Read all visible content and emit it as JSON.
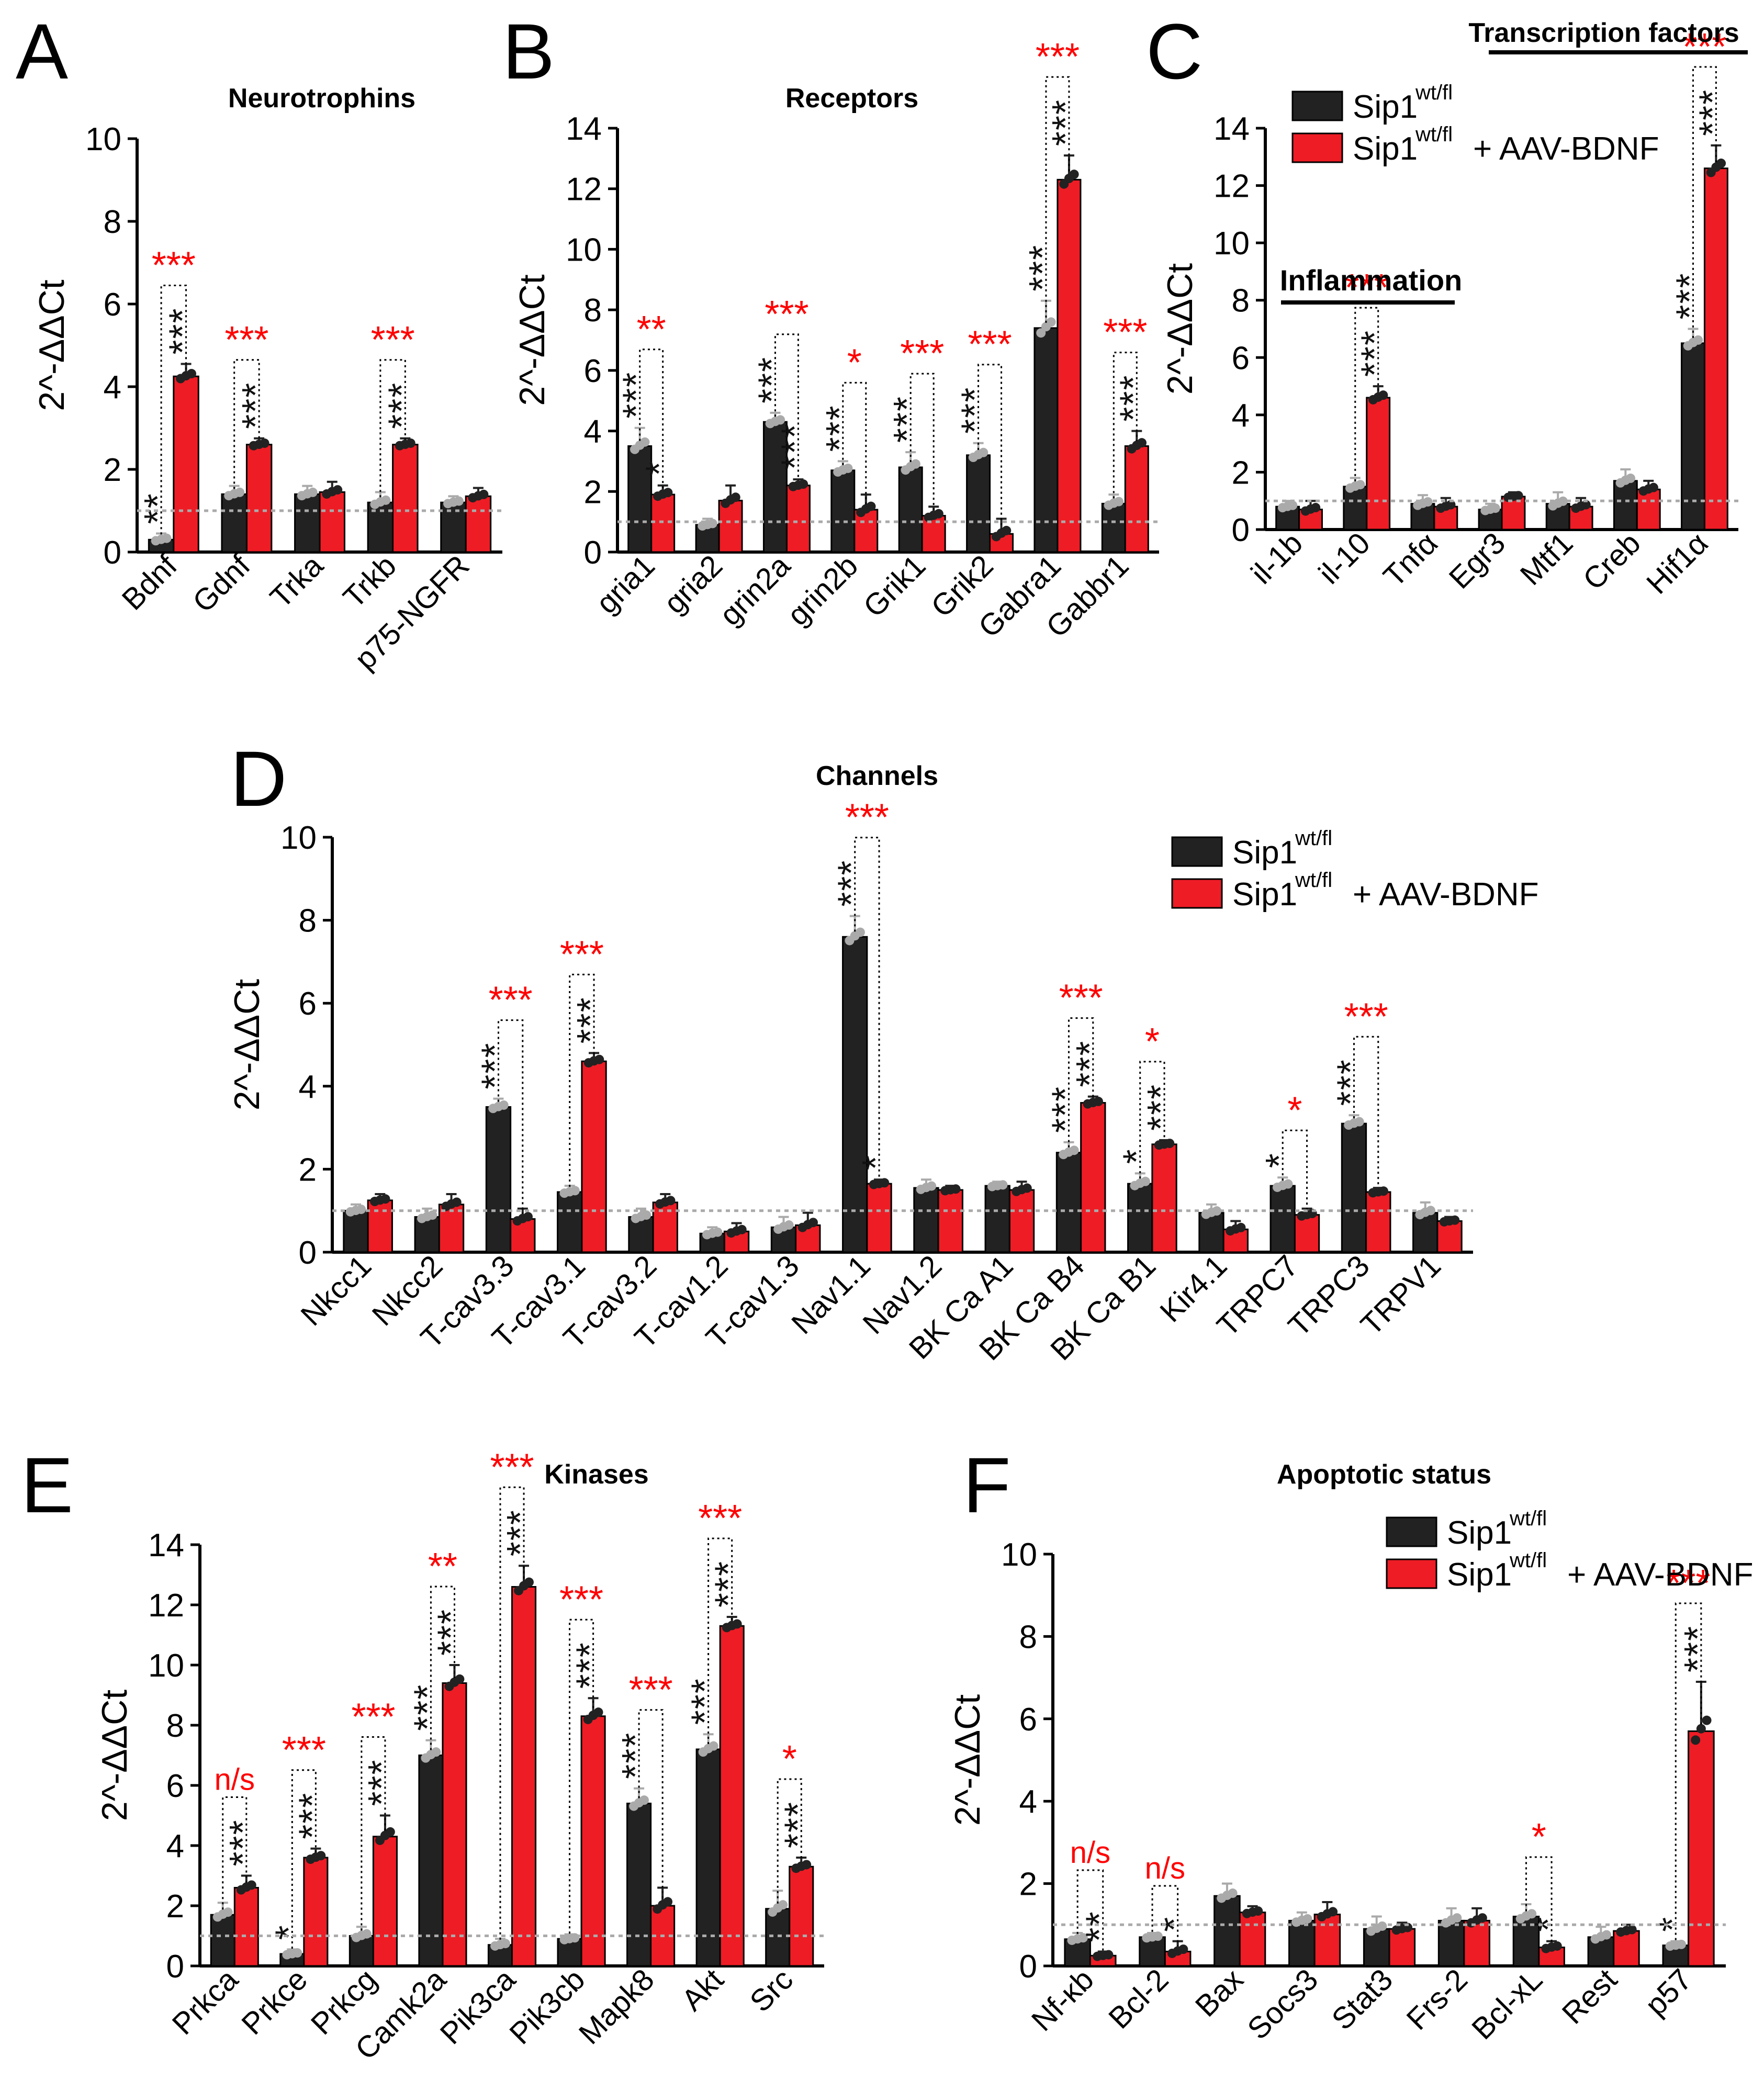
{
  "figure": {
    "legend": {
      "control_label": "Sip1",
      "control_sup": "wt/fl",
      "treated_label": "Sip1",
      "treated_sup": "wt/fl",
      "treated_suffix": "+ AAV-BDNF"
    }
  },
  "colors": {
    "control": "#222222",
    "treated": "#ee1c25",
    "sig_red": "#ff0000",
    "sig_black": "#111111",
    "ref_line": "#aaaaaa",
    "dot_control": "#aaaaaa",
    "dot_treated": "#222222"
  },
  "chart_data": [
    {
      "panel_letter": "A",
      "type": "bar",
      "title": "Neurotrophins",
      "ylabel": "2^-ΔΔCt",
      "ylim": [
        0,
        10
      ],
      "yticks": [
        0,
        2,
        4,
        6,
        8,
        10
      ],
      "reference_line": 1,
      "categories": [
        "Bdnf",
        "Gdnf",
        "Trka",
        "Trkb",
        "p75-NGFR"
      ],
      "series": [
        {
          "name": "Sip1 wt/fl",
          "values": [
            0.3,
            1.4,
            1.4,
            1.2,
            1.2
          ],
          "errors": [
            0.15,
            0.2,
            0.2,
            0.25,
            0.15
          ]
        },
        {
          "name": "Sip1 wt/fl + AAV-BDNF",
          "values": [
            4.25,
            2.6,
            1.45,
            2.6,
            1.35
          ],
          "errors": [
            0.3,
            0.15,
            0.25,
            0.15,
            0.2
          ]
        }
      ],
      "marks_control": [
        "**",
        "",
        "",
        "",
        ""
      ],
      "marks_treated": [
        "***",
        "***",
        "",
        "***",
        ""
      ],
      "comparisons": [
        "***",
        "***",
        "",
        "***",
        ""
      ],
      "comparison_colors": [
        "red",
        "red",
        "",
        "red",
        ""
      ]
    },
    {
      "panel_letter": "B",
      "type": "bar",
      "title": "Receptors",
      "ylabel": "2^-ΔΔCt",
      "ylim": [
        0,
        14
      ],
      "yticks": [
        0,
        2,
        4,
        6,
        8,
        10,
        12,
        14
      ],
      "reference_line": 1,
      "categories": [
        "gria1",
        "gria2",
        "grin2a",
        "grin2b",
        "Grik1",
        "Grik2",
        "Gabra1",
        "Gabbr1"
      ],
      "series": [
        {
          "name": "Sip1 wt/fl",
          "values": [
            3.5,
            0.9,
            4.3,
            2.7,
            2.8,
            3.2,
            7.4,
            1.6
          ],
          "errors": [
            0.6,
            0.2,
            0.3,
            0.3,
            0.5,
            0.4,
            0.9,
            0.3
          ]
        },
        {
          "name": "Sip1 wt/fl + AAV-BDNF",
          "values": [
            1.9,
            1.7,
            2.2,
            1.4,
            1.2,
            0.6,
            12.3,
            3.5
          ],
          "errors": [
            0.3,
            0.5,
            0.2,
            0.5,
            0.3,
            0.5,
            0.8,
            0.5
          ]
        }
      ],
      "marks_control": [
        "***",
        "",
        "***",
        "***",
        "***",
        "***",
        "***",
        ""
      ],
      "marks_treated": [
        "*",
        "",
        "***",
        "",
        "",
        "",
        "***",
        "***"
      ],
      "comparisons": [
        "**",
        "",
        "***",
        "*",
        "***",
        "***",
        "***",
        "***"
      ],
      "comparison_colors": [
        "red",
        "",
        "red",
        "red",
        "red",
        "red",
        "red",
        "red"
      ]
    },
    {
      "panel_letter": "C",
      "type": "bar",
      "title": "",
      "ylabel": "2^-ΔΔCt",
      "ylim": [
        0,
        14
      ],
      "yticks": [
        0,
        2,
        4,
        6,
        8,
        10,
        12,
        14
      ],
      "reference_line": 1,
      "annotations": [
        "Transcription factors",
        "Inflammation"
      ],
      "categories": [
        "il-1b",
        "il-10",
        "Tnfα",
        "Egr3",
        "Mtf1",
        "Creb",
        "Hif1α"
      ],
      "series": [
        {
          "name": "Sip1 wt/fl",
          "values": [
            0.8,
            1.5,
            0.9,
            0.7,
            0.9,
            1.7,
            6.5
          ],
          "errors": [
            0.2,
            0.3,
            0.3,
            0.2,
            0.4,
            0.4,
            0.5
          ]
        },
        {
          "name": "Sip1 wt/fl + AAV-BDNF",
          "values": [
            0.7,
            4.6,
            0.8,
            1.15,
            0.8,
            1.4,
            12.6
          ],
          "errors": [
            0.3,
            0.4,
            0.3,
            0.15,
            0.3,
            0.3,
            0.8
          ]
        }
      ],
      "marks_control": [
        "",
        "",
        "",
        "",
        "",
        "",
        "***"
      ],
      "marks_treated": [
        "",
        "***",
        "",
        "",
        "",
        "",
        "***"
      ],
      "comparisons": [
        "",
        "***",
        "",
        "",
        "",
        "",
        "***"
      ],
      "comparison_colors": [
        "",
        "red",
        "",
        "",
        "",
        "",
        "red"
      ]
    },
    {
      "panel_letter": "D",
      "type": "bar",
      "title": "Channels",
      "ylabel": "2^-ΔΔCt",
      "ylim": [
        0,
        10
      ],
      "yticks": [
        0,
        2,
        4,
        6,
        8,
        10
      ],
      "reference_line": 1,
      "categories": [
        "Nkcc1",
        "Nkcc2",
        "T-cav3.3",
        "T-cav3.1",
        "T-cav3.2",
        "T-cav1.2",
        "T-cav1.3",
        "Nav1.1",
        "Nav1.2",
        "BK Ca A1",
        "BK Ca B4",
        "BK Ca B1",
        "Kir4.1",
        "TRPC7",
        "TRPC3",
        "TRPV1"
      ],
      "series": [
        {
          "name": "Sip1 wt/fl",
          "values": [
            1.0,
            0.85,
            3.5,
            1.45,
            0.85,
            0.45,
            0.6,
            7.6,
            1.55,
            1.6,
            2.4,
            1.65,
            0.95,
            1.6,
            3.1,
            0.95
          ],
          "errors": [
            0.15,
            0.2,
            0.2,
            0.15,
            0.2,
            0.15,
            0.25,
            0.5,
            0.2,
            0.1,
            0.25,
            0.25,
            0.2,
            0.2,
            0.2,
            0.25
          ]
        },
        {
          "name": "Sip1 wt/fl + AAV-BDNF",
          "values": [
            1.25,
            1.15,
            0.8,
            4.6,
            1.2,
            0.5,
            0.65,
            1.65,
            1.5,
            1.5,
            3.6,
            2.6,
            0.55,
            0.9,
            1.45,
            0.75
          ],
          "errors": [
            0.15,
            0.25,
            0.25,
            0.2,
            0.2,
            0.2,
            0.3,
            0.1,
            0.1,
            0.2,
            0.15,
            0.1,
            0.2,
            0.15,
            0.1,
            0.1
          ]
        }
      ],
      "marks_control": [
        "",
        "",
        "***",
        "",
        "",
        "",
        "",
        "***",
        "",
        "",
        "***",
        "*",
        "",
        "*",
        "***",
        ""
      ],
      "marks_treated": [
        "",
        "",
        "",
        "***",
        "",
        "",
        "",
        "*",
        "",
        "",
        "***",
        "***",
        "",
        "",
        "",
        ""
      ],
      "comparisons": [
        "",
        "",
        "***",
        "***",
        "",
        "",
        "",
        "***",
        "",
        "",
        "***",
        "*",
        "",
        "*",
        "***",
        ""
      ],
      "comparison_colors": [
        "",
        "",
        "red",
        "red",
        "",
        "",
        "",
        "red",
        "",
        "",
        "red",
        "red",
        "",
        "red",
        "red",
        ""
      ]
    },
    {
      "panel_letter": "E",
      "type": "bar",
      "title": "Kinases",
      "ylabel": "2^-ΔΔCt",
      "ylim": [
        0,
        14
      ],
      "yticks": [
        0,
        2,
        4,
        6,
        8,
        10,
        12,
        14
      ],
      "reference_line": 1,
      "categories": [
        "Prkca",
        "Prkce",
        "Prkcg",
        "Camk2a",
        "Pik3ca",
        "Pik3cb",
        "Mapk8",
        "Akt",
        "Src"
      ],
      "series": [
        {
          "name": "Sip1 wt/fl",
          "values": [
            1.7,
            0.4,
            1.0,
            7.0,
            0.7,
            0.9,
            5.4,
            7.2,
            1.9
          ],
          "errors": [
            0.4,
            0.15,
            0.3,
            0.5,
            0.2,
            0.15,
            0.5,
            0.5,
            0.6
          ]
        },
        {
          "name": "Sip1 wt/fl + AAV-BDNF",
          "values": [
            2.6,
            3.6,
            4.3,
            9.4,
            12.6,
            8.3,
            2.0,
            11.3,
            3.3
          ],
          "errors": [
            0.4,
            0.3,
            0.7,
            0.6,
            0.7,
            0.6,
            0.6,
            0.3,
            0.3
          ]
        }
      ],
      "marks_control": [
        "",
        "*",
        "",
        "***",
        "",
        "",
        "***",
        "***",
        ""
      ],
      "marks_treated": [
        "***",
        "***",
        "***",
        "***",
        "***",
        "***",
        "",
        "***",
        "***"
      ],
      "comparisons": [
        "n/s",
        "***",
        "***",
        "**",
        "***",
        "***",
        "***",
        "***",
        "*"
      ],
      "comparison_colors": [
        "red",
        "red",
        "red",
        "red",
        "red",
        "red",
        "red",
        "red",
        "red"
      ]
    },
    {
      "panel_letter": "F",
      "type": "bar",
      "title": "Apoptotic status",
      "ylabel": "2^-ΔΔCt",
      "ylim": [
        0,
        10
      ],
      "yticks": [
        0,
        2,
        4,
        6,
        8,
        10
      ],
      "reference_line": 1,
      "categories": [
        "Nf-κb",
        "Bcl-2",
        "Bax",
        "Socs3",
        "Stat3",
        "Frs-2",
        "Bcl-xL",
        "Rest",
        "p57"
      ],
      "series": [
        {
          "name": "Sip1 wt/fl",
          "values": [
            0.65,
            0.7,
            1.7,
            1.1,
            0.9,
            1.1,
            1.2,
            0.7,
            0.5
          ],
          "errors": [
            0.15,
            0.1,
            0.3,
            0.2,
            0.3,
            0.3,
            0.3,
            0.25,
            0.1
          ]
        },
        {
          "name": "Sip1 wt/fl + AAV-BDNF",
          "values": [
            0.25,
            0.35,
            1.3,
            1.25,
            0.9,
            1.1,
            0.45,
            0.85,
            5.7
          ],
          "errors": [
            0.1,
            0.25,
            0.15,
            0.3,
            0.15,
            0.3,
            0.15,
            0.15,
            1.2
          ]
        }
      ],
      "marks_control": [
        "",
        "",
        "",
        "",
        "",
        "",
        "",
        "",
        "*"
      ],
      "marks_treated": [
        "**",
        "*",
        "",
        "",
        "",
        "",
        "*",
        "",
        "***"
      ],
      "comparisons": [
        "n/s",
        "n/s",
        "",
        "",
        "",
        "",
        "*",
        "",
        "***"
      ],
      "comparison_colors": [
        "red",
        "red",
        "",
        "",
        "",
        "",
        "red",
        "",
        "red"
      ]
    }
  ]
}
